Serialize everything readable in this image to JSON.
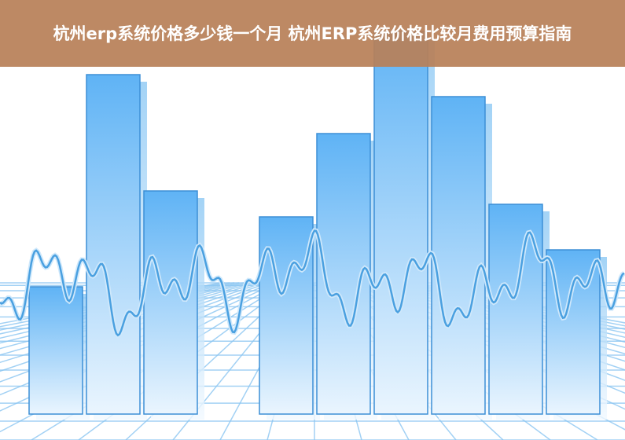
{
  "title": "杭州erp系统价格多少钱一个月 杭州ERP系统价格比较月费用预算指南",
  "colors": {
    "banner": "#b88058",
    "bar_top": "#5fb3f5",
    "bar_bottom": "#e6f3fd",
    "wave": "#4aa0e0",
    "grid": "#7fbff0"
  }
}
